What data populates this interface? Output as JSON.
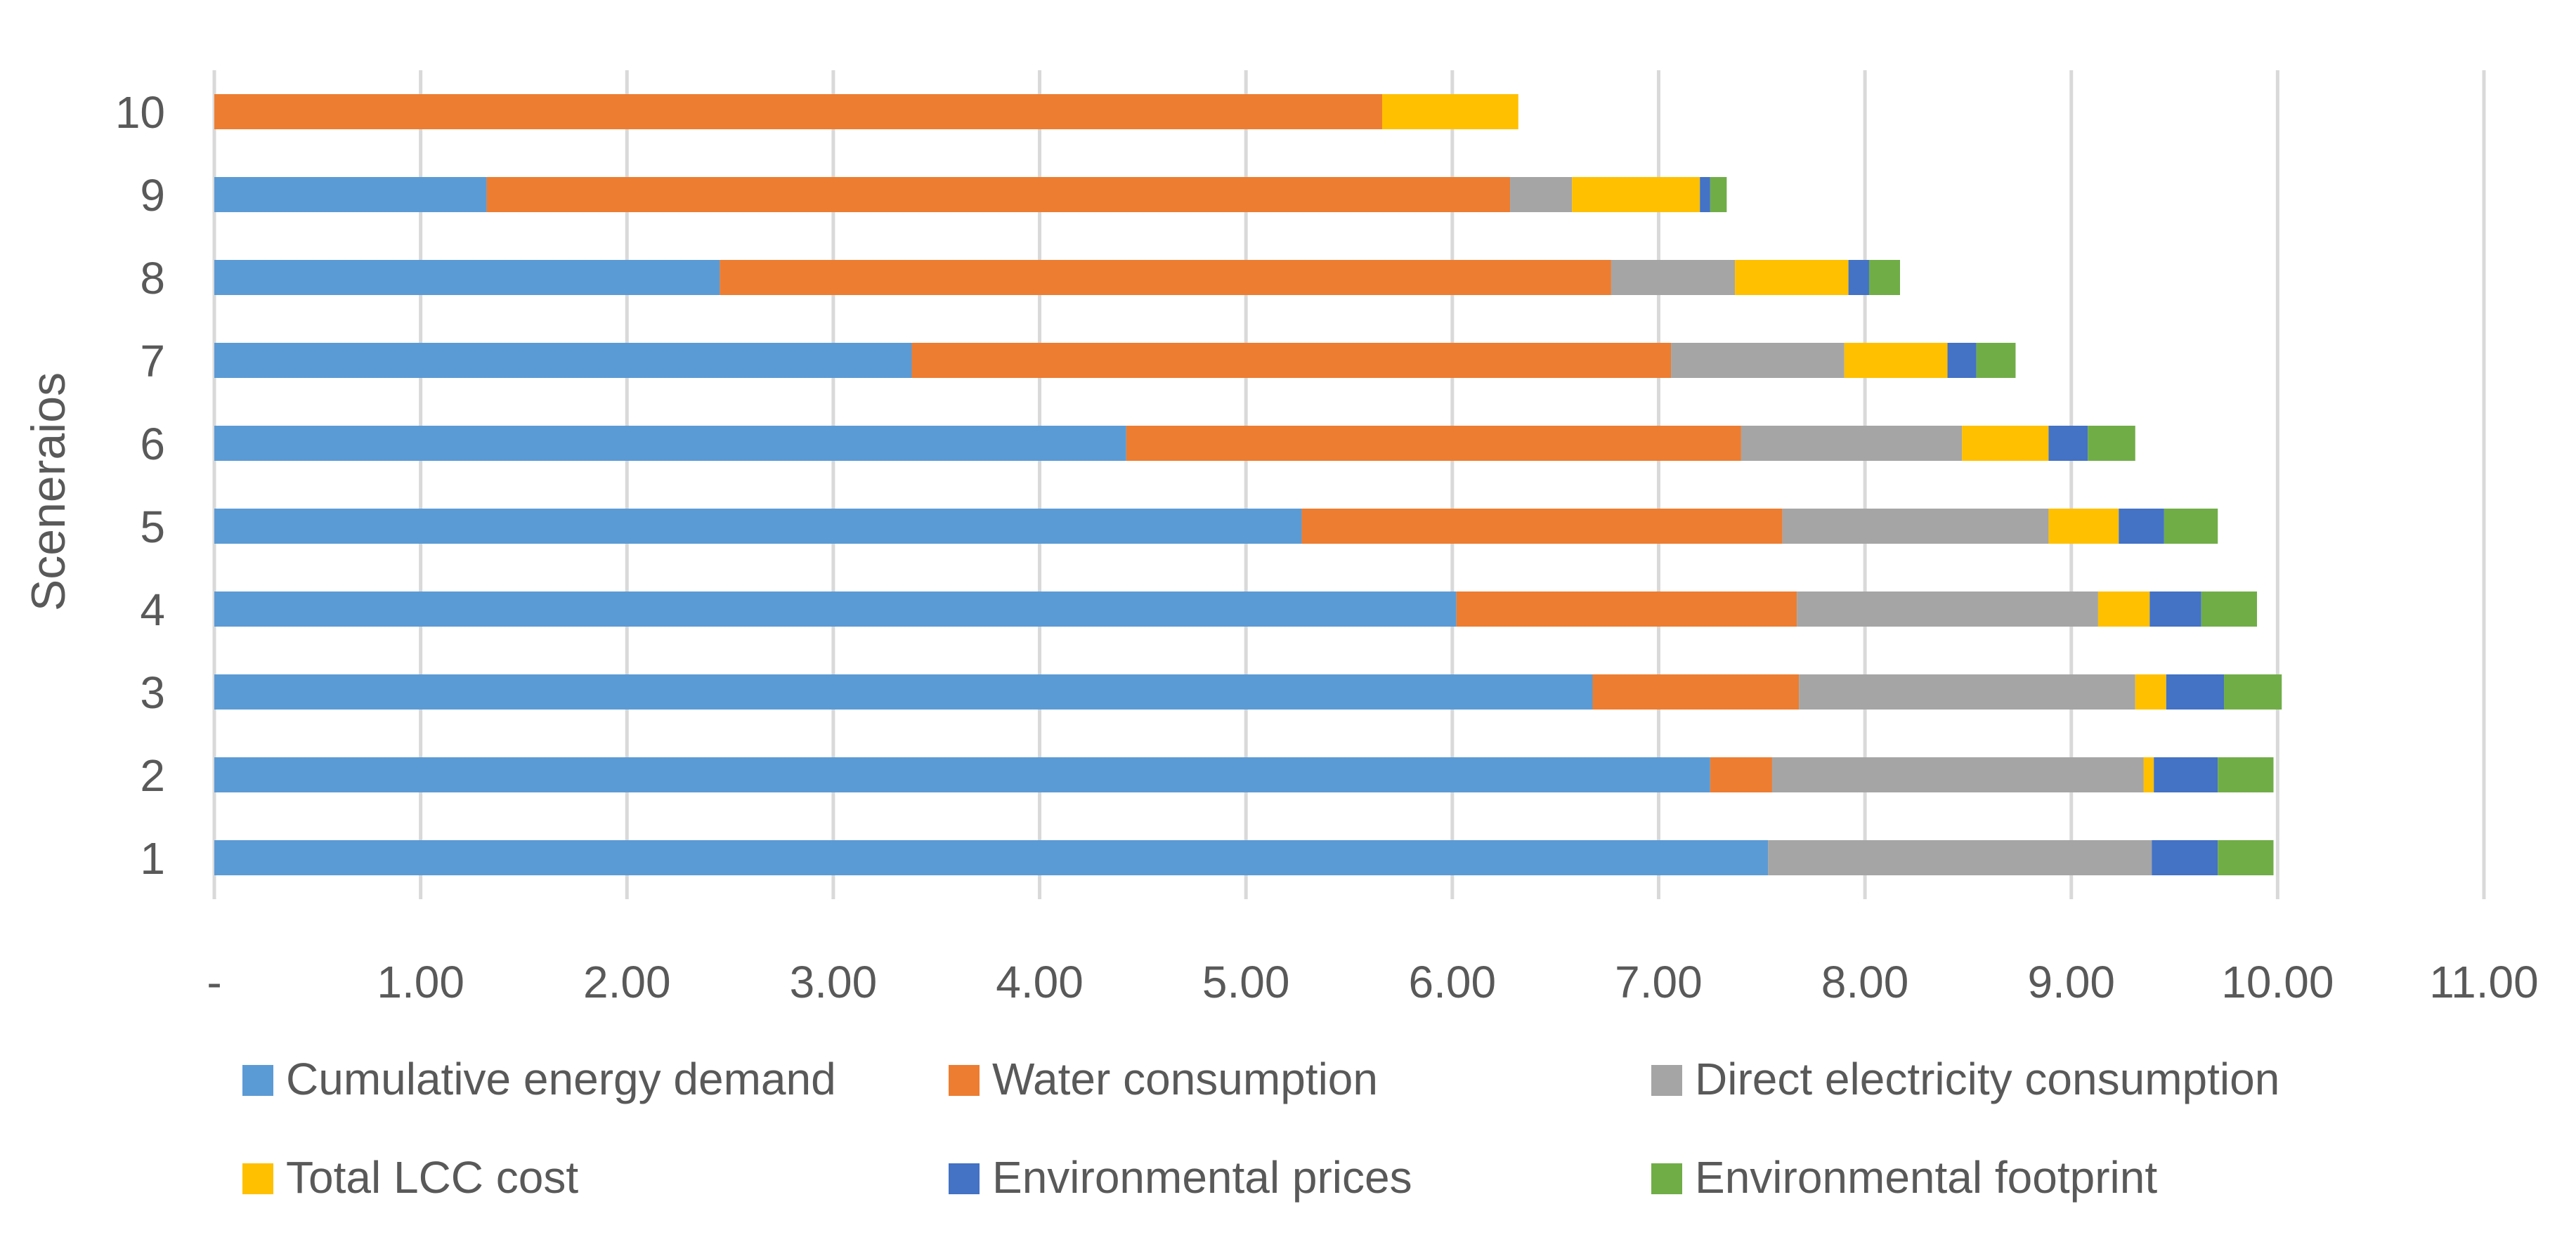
{
  "chart_data": {
    "type": "bar",
    "orientation": "horizontal",
    "stacked": true,
    "title": "",
    "xlabel": "",
    "ylabel": "Sceneraios",
    "xlim": [
      0,
      11
    ],
    "x_ticks": [
      {
        "value": 0,
        "label": "-"
      },
      {
        "value": 1,
        "label": "1.00"
      },
      {
        "value": 2,
        "label": "2.00"
      },
      {
        "value": 3,
        "label": "3.00"
      },
      {
        "value": 4,
        "label": "4.00"
      },
      {
        "value": 5,
        "label": "5.00"
      },
      {
        "value": 6,
        "label": "6.00"
      },
      {
        "value": 7,
        "label": "7.00"
      },
      {
        "value": 8,
        "label": "8.00"
      },
      {
        "value": 9,
        "label": "9.00"
      },
      {
        "value": 10,
        "label": "10.00"
      },
      {
        "value": 11,
        "label": "11.00"
      }
    ],
    "grid": "vertical",
    "legend_position": "bottom",
    "categories": [
      "1",
      "2",
      "3",
      "4",
      "5",
      "6",
      "7",
      "8",
      "9",
      "10"
    ],
    "series": [
      {
        "name": "Cumulative energy demand",
        "color": "#5B9BD5",
        "values": [
          7.53,
          7.25,
          6.68,
          6.02,
          5.27,
          4.42,
          3.38,
          2.45,
          1.32,
          0.0
        ]
      },
      {
        "name": "Water consumption",
        "color": "#ED7D31",
        "values": [
          0.0,
          0.3,
          1.0,
          1.65,
          2.33,
          2.98,
          3.68,
          4.32,
          4.96,
          5.66
        ]
      },
      {
        "name": "Direct electricity consumption",
        "color": "#A5A5A5",
        "values": [
          1.86,
          1.8,
          1.63,
          1.46,
          1.29,
          1.07,
          0.84,
          0.6,
          0.3,
          0.0
        ]
      },
      {
        "name": "Total LCC cost",
        "color": "#FFC000",
        "values": [
          0.0,
          0.05,
          0.15,
          0.25,
          0.34,
          0.42,
          0.5,
          0.55,
          0.62,
          0.66
        ]
      },
      {
        "name": "Environmental prices",
        "color": "#4472C4",
        "values": [
          0.32,
          0.31,
          0.28,
          0.25,
          0.22,
          0.19,
          0.14,
          0.1,
          0.05,
          0.0
        ]
      },
      {
        "name": "Environmental footprint",
        "color": "#70AD47",
        "values": [
          0.27,
          0.27,
          0.28,
          0.27,
          0.26,
          0.23,
          0.19,
          0.15,
          0.08,
          0.0
        ]
      }
    ]
  }
}
